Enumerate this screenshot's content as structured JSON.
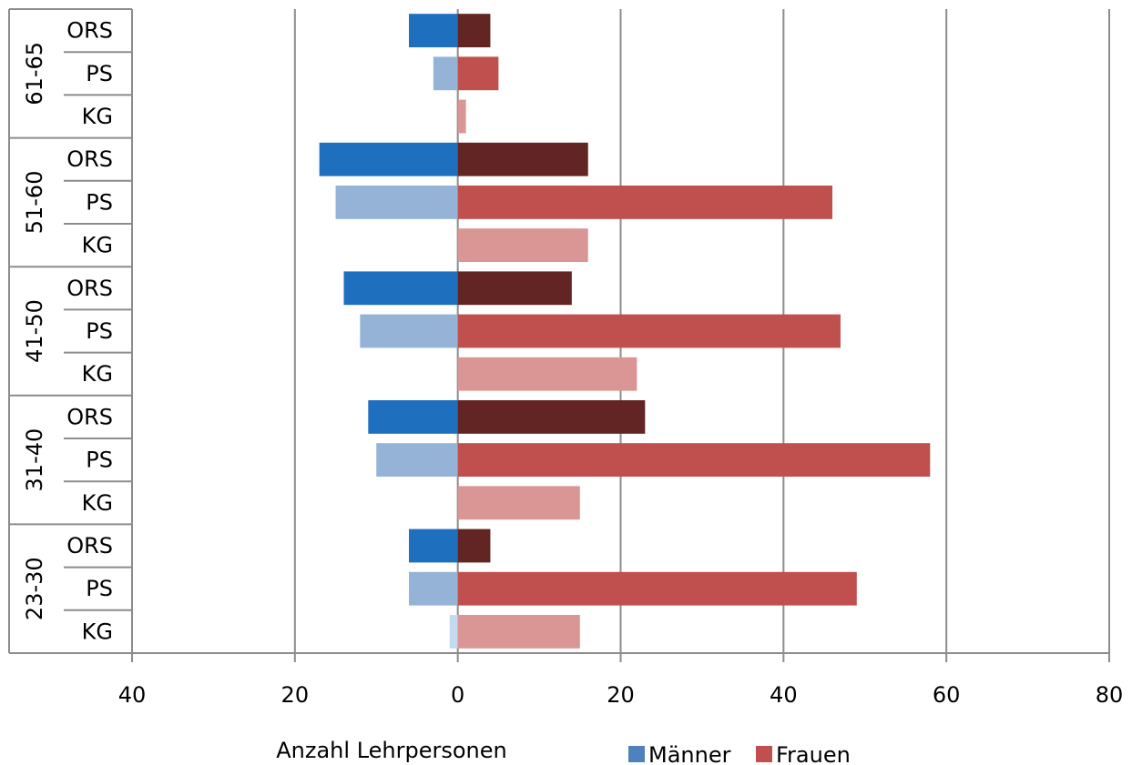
{
  "chart_data": {
    "type": "bar",
    "orientation": "horizontal",
    "xlabel": "Anzahl Lehrpersonen",
    "xlim": [
      -40,
      80
    ],
    "xticks": [
      -40,
      -20,
      0,
      20,
      40,
      60,
      80
    ],
    "xtick_labels": [
      "40",
      "20",
      "0",
      "20",
      "40",
      "60",
      "80"
    ],
    "grid": "vertical",
    "legend": {
      "placement": "bottom-center",
      "entries": [
        {
          "name": "Männer",
          "color": "#4f81bd"
        },
        {
          "name": "Frauen",
          "color": "#c0504d"
        }
      ]
    },
    "groups": [
      "61-65",
      "51-60",
      "41-50",
      "31-40",
      "23-30"
    ],
    "categories": [
      "ORS",
      "PS",
      "KG"
    ],
    "series": [
      {
        "name": "Männer",
        "colors": {
          "ORS": "#1f6fbf",
          "PS": "#95b3d7",
          "KG": "#c5d9f1"
        },
        "values": {
          "61-65": {
            "ORS": -6,
            "PS": -3,
            "KG": 0
          },
          "51-60": {
            "ORS": -17,
            "PS": -15,
            "KG": 0
          },
          "41-50": {
            "ORS": -14,
            "PS": -12,
            "KG": 0
          },
          "31-40": {
            "ORS": -11,
            "PS": -10,
            "KG": 0
          },
          "23-30": {
            "ORS": -6,
            "PS": -6,
            "KG": -1
          }
        }
      },
      {
        "name": "Frauen",
        "colors": {
          "ORS": "#632523",
          "PS": "#c0504d",
          "KG": "#da9694"
        },
        "values": {
          "61-65": {
            "ORS": 4,
            "PS": 5,
            "KG": 1
          },
          "51-60": {
            "ORS": 16,
            "PS": 46,
            "KG": 16
          },
          "41-50": {
            "ORS": 14,
            "PS": 47,
            "KG": 22
          },
          "31-40": {
            "ORS": 23,
            "PS": 58,
            "KG": 15
          },
          "23-30": {
            "ORS": 4,
            "PS": 49,
            "KG": 15
          }
        }
      }
    ]
  }
}
